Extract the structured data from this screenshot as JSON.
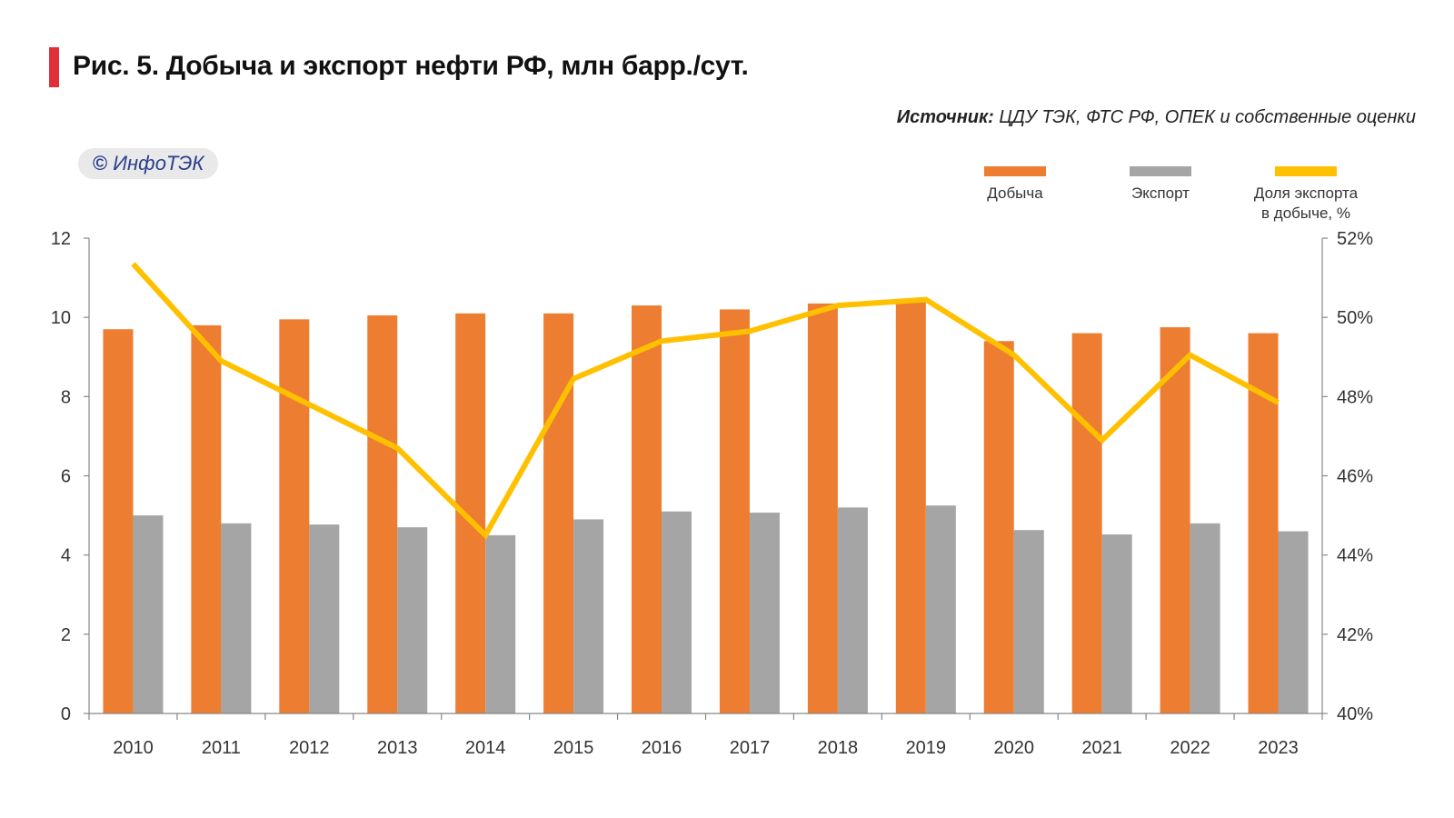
{
  "title": "Рис. 5. Добыча и экспорт нефти РФ, млн барр./сут.",
  "source": {
    "label": "Источник:",
    "text": " ЦДУ ТЭК, ФТС РФ, ОПЕК и собственные оценки"
  },
  "copyright": {
    "symbol": "©",
    "text": "ИнфоТЭК"
  },
  "colors": {
    "production": "#ed7d31",
    "export": "#a5a5a5",
    "share": "#ffc000",
    "title_accent": "#e0303a"
  },
  "legend": {
    "production": "Добыча",
    "export": "Экспорт",
    "share_line1": "Доля экспорта",
    "share_line2": "в добыче, %"
  },
  "chart_data": {
    "type": "bar",
    "title": "Рис. 5. Добыча и экспорт нефти РФ, млн барр./сут.",
    "categories": [
      "2010",
      "2011",
      "2012",
      "2013",
      "2014",
      "2015",
      "2016",
      "2017",
      "2018",
      "2019",
      "2020",
      "2021",
      "2022",
      "2023"
    ],
    "series": [
      {
        "name": "Добыча",
        "type": "bar",
        "axis": "left",
        "values": [
          9.7,
          9.8,
          9.95,
          10.05,
          10.1,
          10.1,
          10.3,
          10.2,
          10.35,
          10.4,
          9.4,
          9.6,
          9.75,
          9.6
        ]
      },
      {
        "name": "Экспорт",
        "type": "bar",
        "axis": "left",
        "values": [
          5.0,
          4.8,
          4.77,
          4.7,
          4.5,
          4.9,
          5.1,
          5.07,
          5.2,
          5.25,
          4.63,
          4.52,
          4.8,
          4.6
        ]
      },
      {
        "name": "Доля экспорта в добыче, %",
        "type": "line",
        "axis": "right",
        "values": [
          51.35,
          48.9,
          47.8,
          46.7,
          44.5,
          48.45,
          49.4,
          49.65,
          50.3,
          50.45,
          49.05,
          46.9,
          49.05,
          47.85
        ]
      }
    ],
    "ylim": [
      0,
      12
    ],
    "yticks": [
      "0",
      "2",
      "4",
      "6",
      "8",
      "10",
      "12"
    ],
    "y2lim": [
      40,
      52
    ],
    "y2ticks": [
      "40%",
      "42%",
      "44%",
      "46%",
      "48%",
      "50%",
      "52%"
    ],
    "xlabel": "",
    "ylabel": "",
    "grid": false,
    "legend_position": "top-right"
  }
}
